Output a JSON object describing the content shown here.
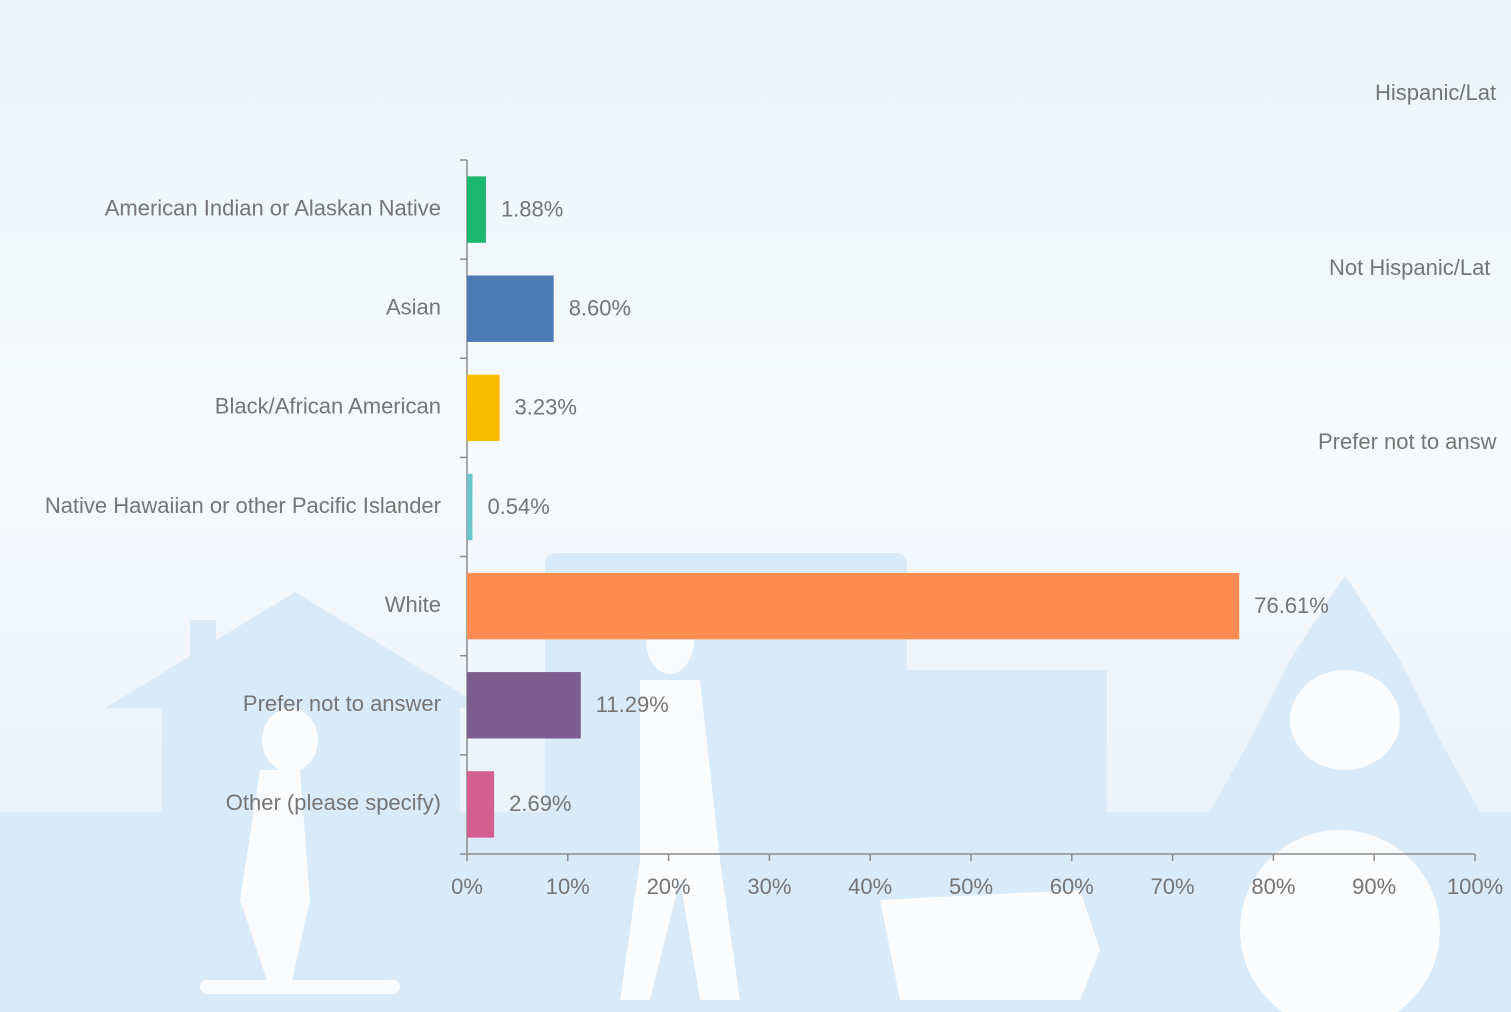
{
  "chart_data": {
    "type": "bar",
    "orientation": "horizontal",
    "categories": [
      "American Indian or Alaskan Native",
      "Asian",
      "Black/African American",
      "Native Hawaiian or other Pacific Islander",
      "White",
      "Prefer not to answer",
      "Other (please specify)"
    ],
    "values": [
      1.88,
      8.6,
      3.23,
      0.54,
      76.61,
      11.29,
      2.69
    ],
    "value_labels": [
      "1.88%",
      "8.60%",
      "3.23%",
      "0.54%",
      "76.61%",
      "11.29%",
      "2.69%"
    ],
    "colors": [
      "#1db86f",
      "#4e7ab5",
      "#f9bd00",
      "#6cc4cc",
      "#ff8c50",
      "#7d5d8e",
      "#d45e91"
    ],
    "xlim": [
      0,
      100
    ],
    "xticks": [
      {
        "value": 0,
        "label": "0%"
      },
      {
        "value": 10,
        "label": "10%"
      },
      {
        "value": 20,
        "label": "20%"
      },
      {
        "value": 30,
        "label": "30%"
      },
      {
        "value": 40,
        "label": "40%"
      },
      {
        "value": 50,
        "label": "50%"
      },
      {
        "value": 60,
        "label": "60%"
      },
      {
        "value": 70,
        "label": "70%"
      },
      {
        "value": 80,
        "label": "80%"
      },
      {
        "value": 90,
        "label": "90%"
      },
      {
        "value": 100,
        "label": "100%"
      }
    ],
    "grid": false
  },
  "side_labels": [
    "Hispanic/Lat",
    "Not Hispanic/Lat",
    "Prefer not to answ"
  ]
}
